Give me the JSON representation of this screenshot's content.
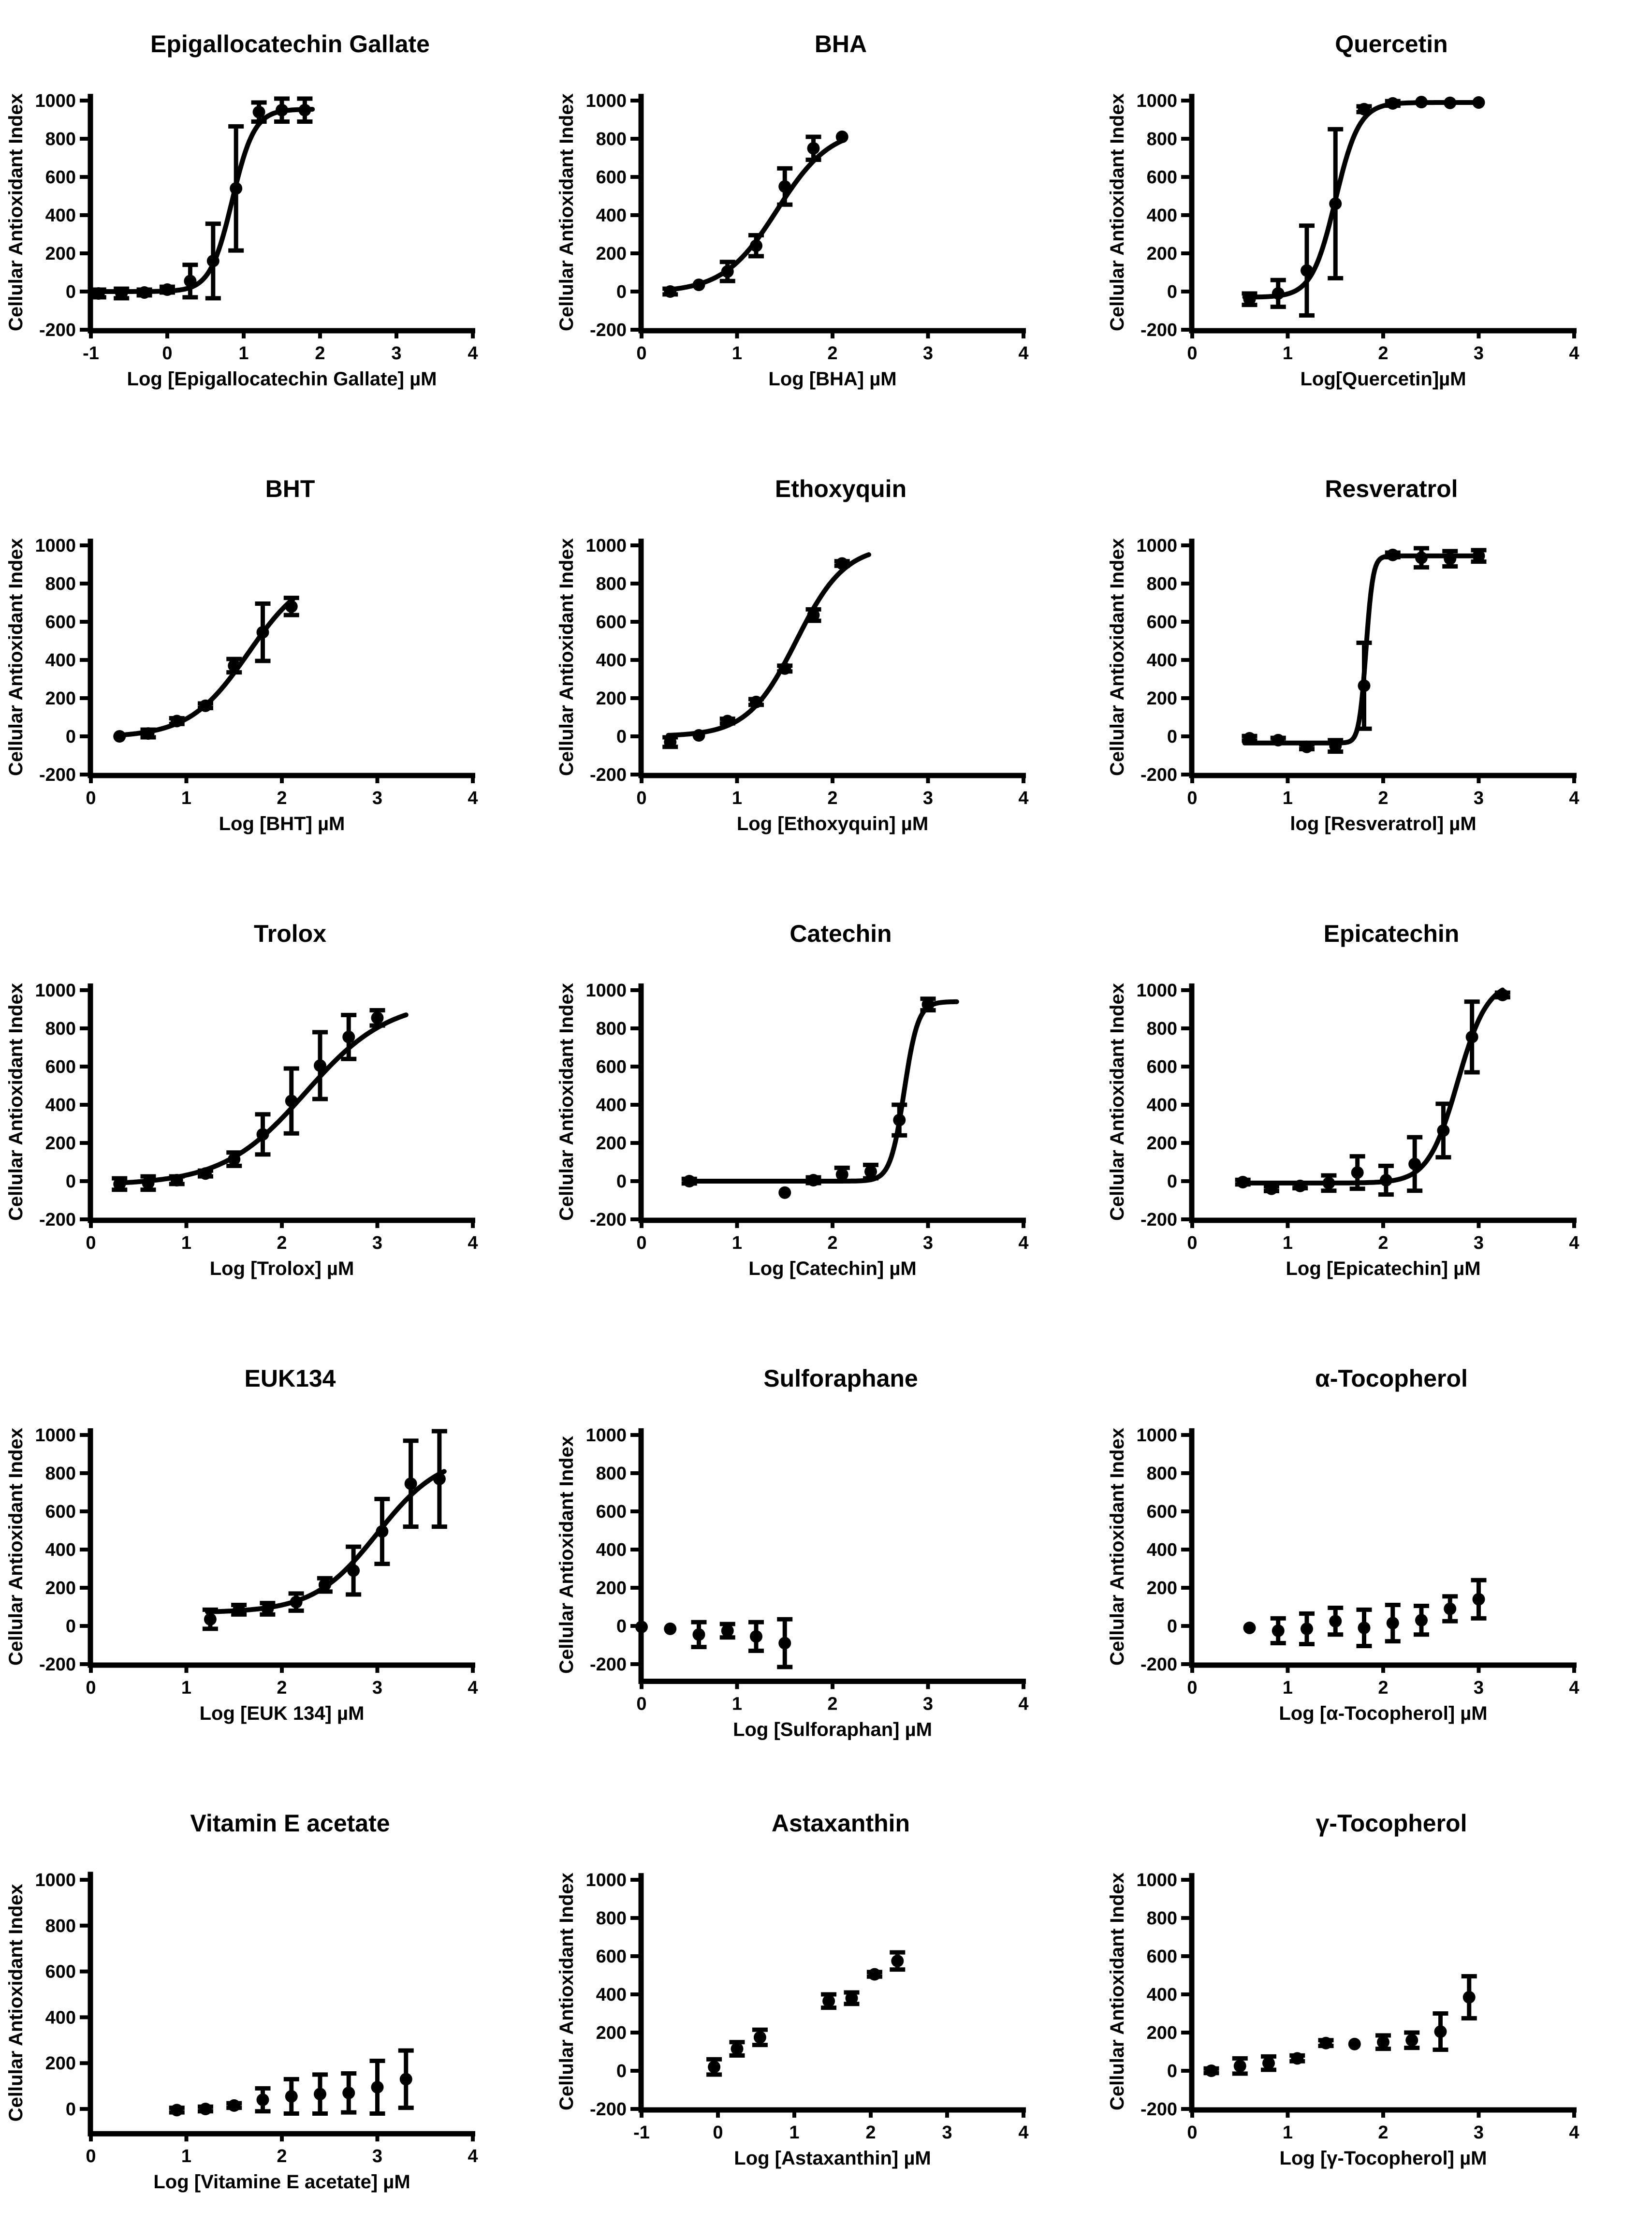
{
  "figure": {
    "background": "#ffffff",
    "ink_color": "#000000",
    "marker": "filled-circle",
    "rows": 5,
    "cols": 3
  },
  "chart_data": [
    {
      "type": "scatter",
      "title": "Epigallocatechin Gallate",
      "xlabel": "Log [Epigallocatechin Gallate] µM",
      "ylabel": "Cellular Antioxidant Index",
      "xlim": [
        -1,
        4
      ],
      "ylim": [
        -205,
        1035
      ],
      "xticks": [
        -1,
        0,
        1,
        2,
        3,
        4
      ],
      "yticks": [
        -200,
        0,
        200,
        400,
        600,
        800,
        1000
      ],
      "grid": false,
      "legend": "none",
      "fit": {
        "bottom": 0,
        "top": 955,
        "logec50": 0.85,
        "hill": 3,
        "xrange": [
          -0.92,
          1.9
        ]
      },
      "points": [
        [
          -0.9,
          -10,
          20
        ],
        [
          -0.6,
          -10,
          25
        ],
        [
          -0.3,
          -5,
          15
        ],
        [
          0,
          10,
          15
        ],
        [
          0.3,
          55,
          85
        ],
        [
          0.6,
          160,
          195
        ],
        [
          0.9,
          540,
          325
        ],
        [
          1.2,
          940,
          50
        ],
        [
          1.5,
          950,
          60
        ],
        [
          1.8,
          950,
          60
        ]
      ]
    },
    {
      "type": "scatter",
      "title": "BHA",
      "xlabel": "Log [BHA] µM",
      "ylabel": "Cellular Antioxidant Index",
      "xlim": [
        0,
        4
      ],
      "ylim": [
        -205,
        1035
      ],
      "xticks": [
        0,
        1,
        2,
        3,
        4
      ],
      "yticks": [
        -200,
        0,
        200,
        400,
        600,
        800,
        1000
      ],
      "grid": false,
      "legend": "none",
      "fit": {
        "bottom": -5,
        "top": 860,
        "logec50": 1.42,
        "hill": 1.55,
        "xrange": [
          0.28,
          2.1
        ]
      },
      "points": [
        [
          0.3,
          0,
          15
        ],
        [
          0.6,
          35,
          10
        ],
        [
          0.9,
          105,
          50
        ],
        [
          1.2,
          240,
          55
        ],
        [
          1.5,
          550,
          95
        ],
        [
          1.8,
          750,
          60
        ],
        [
          2.1,
          810,
          10
        ]
      ]
    },
    {
      "type": "scatter",
      "title": "Quercetin",
      "xlabel": "Log[Quercetin]µM",
      "ylabel": "Cellular Antioxidant Index",
      "xlim": [
        0,
        4
      ],
      "ylim": [
        -205,
        1035
      ],
      "xticks": [
        0,
        1,
        2,
        3,
        4
      ],
      "yticks": [
        -200,
        0,
        200,
        400,
        600,
        800,
        1000
      ],
      "grid": false,
      "legend": "none",
      "fit": {
        "bottom": -30,
        "top": 990,
        "logec50": 1.5,
        "hill": 3.5,
        "xrange": [
          0.55,
          3.0
        ]
      },
      "points": [
        [
          0.6,
          -40,
          30
        ],
        [
          0.9,
          -10,
          70
        ],
        [
          1.2,
          110,
          235
        ],
        [
          1.5,
          460,
          390
        ],
        [
          1.8,
          955,
          15
        ],
        [
          2.1,
          985,
          12
        ],
        [
          2.4,
          992,
          10
        ],
        [
          2.7,
          988,
          10
        ],
        [
          3.0,
          990,
          10
        ]
      ]
    },
    {
      "type": "scatter",
      "title": "BHT",
      "xlabel": "Log [BHT] µM",
      "ylabel": "Cellular Antioxidant Index",
      "xlim": [
        0,
        4
      ],
      "ylim": [
        -205,
        1035
      ],
      "xticks": [
        0,
        1,
        2,
        3,
        4
      ],
      "yticks": [
        -200,
        0,
        200,
        400,
        600,
        800,
        1000
      ],
      "grid": false,
      "legend": "none",
      "fit": {
        "bottom": -5,
        "top": 880,
        "logec50": 1.65,
        "hill": 1.4,
        "xrange": [
          0.28,
          2.12
        ]
      },
      "points": [
        [
          0.3,
          0,
          10
        ],
        [
          0.6,
          15,
          20
        ],
        [
          0.9,
          80,
          15
        ],
        [
          1.2,
          160,
          12
        ],
        [
          1.5,
          370,
          35
        ],
        [
          1.8,
          545,
          150
        ],
        [
          2.1,
          680,
          45
        ]
      ]
    },
    {
      "type": "scatter",
      "title": "Ethoxyquin",
      "xlabel": "Log [Ethoxyquin] µM",
      "ylabel": "Cellular Antioxidant Index",
      "xlim": [
        0,
        4
      ],
      "ylim": [
        -205,
        1035
      ],
      "xticks": [
        0,
        1,
        2,
        3,
        4
      ],
      "yticks": [
        -200,
        0,
        200,
        400,
        600,
        800,
        1000
      ],
      "grid": false,
      "legend": "none",
      "fit": {
        "bottom": 0,
        "top": 1000,
        "logec50": 1.62,
        "hill": 1.7,
        "xrange": [
          0.28,
          2.38
        ]
      },
      "points": [
        [
          0.3,
          -30,
          25
        ],
        [
          0.6,
          5,
          10
        ],
        [
          0.9,
          80,
          12
        ],
        [
          1.2,
          180,
          15
        ],
        [
          1.5,
          355,
          15
        ],
        [
          1.8,
          635,
          30
        ],
        [
          2.1,
          905,
          12
        ]
      ]
    },
    {
      "type": "scatter",
      "title": "Resveratrol",
      "xlabel": "log [Resveratrol] µM",
      "ylabel": "Cellular Antioxidant Index",
      "xlim": [
        0,
        4
      ],
      "ylim": [
        -205,
        1035
      ],
      "xticks": [
        0,
        1,
        2,
        3,
        4
      ],
      "yticks": [
        -200,
        0,
        200,
        400,
        600,
        800,
        1000
      ],
      "grid": false,
      "legend": "none",
      "fit": {
        "bottom": -35,
        "top": 945,
        "logec50": 1.82,
        "hill": 12,
        "xrange": [
          0.55,
          3.0
        ]
      },
      "points": [
        [
          0.6,
          -10,
          12
        ],
        [
          0.9,
          -20,
          12
        ],
        [
          1.2,
          -55,
          12
        ],
        [
          1.5,
          -50,
          30
        ],
        [
          1.8,
          265,
          225
        ],
        [
          2.1,
          950,
          12
        ],
        [
          2.4,
          935,
          50
        ],
        [
          2.7,
          930,
          40
        ],
        [
          3.0,
          945,
          30
        ]
      ]
    },
    {
      "type": "scatter",
      "title": "Trolox",
      "xlabel": "Log [Trolox] µM",
      "ylabel": "Cellular Antioxidant Index",
      "xlim": [
        0,
        4
      ],
      "ylim": [
        -205,
        1035
      ],
      "xticks": [
        0,
        1,
        2,
        3,
        4
      ],
      "yticks": [
        -200,
        0,
        200,
        400,
        600,
        800,
        1000
      ],
      "grid": false,
      "legend": "none",
      "fit": {
        "bottom": -20,
        "top": 950,
        "logec50": 2.25,
        "hill": 1.0,
        "xrange": [
          0.28,
          3.3
        ]
      },
      "points": [
        [
          0.3,
          -15,
          30
        ],
        [
          0.6,
          -10,
          35
        ],
        [
          0.9,
          5,
          20
        ],
        [
          1.2,
          40,
          15
        ],
        [
          1.5,
          115,
          35
        ],
        [
          1.8,
          245,
          105
        ],
        [
          2.1,
          420,
          170
        ],
        [
          2.4,
          605,
          175
        ],
        [
          2.7,
          755,
          115
        ],
        [
          3.0,
          855,
          40
        ]
      ]
    },
    {
      "type": "scatter",
      "title": "Catechin",
      "xlabel": "Log [Catechin] µM",
      "ylabel": "Cellular Antioxidant Index",
      "xlim": [
        0,
        4
      ],
      "ylim": [
        -205,
        1035
      ],
      "xticks": [
        0,
        1,
        2,
        3,
        4
      ],
      "yticks": [
        -200,
        0,
        200,
        400,
        600,
        800,
        1000
      ],
      "grid": false,
      "legend": "none",
      "fit": {
        "bottom": 0,
        "top": 940,
        "logec50": 2.75,
        "hill": 6,
        "xrange": [
          0.5,
          3.3
        ]
      },
      "points": [
        [
          0.5,
          0,
          12
        ],
        [
          1.5,
          -60,
          10
        ],
        [
          1.8,
          5,
          15
        ],
        [
          2.1,
          35,
          35
        ],
        [
          2.4,
          50,
          35
        ],
        [
          2.7,
          320,
          80
        ],
        [
          3.0,
          925,
          30
        ]
      ]
    },
    {
      "type": "scatter",
      "title": "Epicatechin",
      "xlabel": "Log [Epicatechin] µM",
      "ylabel": "Cellular Antioxidant Index",
      "xlim": [
        0,
        4
      ],
      "ylim": [
        -205,
        1035
      ],
      "xticks": [
        0,
        1,
        2,
        3,
        4
      ],
      "yticks": [
        -200,
        0,
        200,
        400,
        600,
        800,
        1000
      ],
      "grid": false,
      "legend": "none",
      "fit": {
        "bottom": -10,
        "top": 1050,
        "logec50": 2.78,
        "hill": 2.8,
        "xrange": [
          0.5,
          3.25
        ]
      },
      "points": [
        [
          0.53,
          -5,
          12
        ],
        [
          0.83,
          -40,
          12
        ],
        [
          1.13,
          -25,
          12
        ],
        [
          1.43,
          -10,
          40
        ],
        [
          1.73,
          45,
          85
        ],
        [
          2.03,
          5,
          75
        ],
        [
          2.33,
          90,
          140
        ],
        [
          2.63,
          265,
          140
        ],
        [
          2.93,
          755,
          185
        ],
        [
          3.25,
          975,
          12
        ]
      ]
    },
    {
      "type": "scatter",
      "title": "EUK134",
      "xlabel": "Log [EUK 134] µM",
      "ylabel": "Cellular Antioxidant Index",
      "xlim": [
        0,
        4
      ],
      "ylim": [
        -205,
        1035
      ],
      "xticks": [
        0,
        1,
        2,
        3,
        4
      ],
      "yticks": [
        -200,
        0,
        200,
        400,
        600,
        800,
        1000
      ],
      "grid": false,
      "legend": "none",
      "fit": {
        "bottom": 70,
        "top": 900,
        "logec50": 3.0,
        "hill": 1.3,
        "xrange": [
          1.22,
          3.7
        ]
      },
      "points": [
        [
          1.25,
          35,
          50
        ],
        [
          1.55,
          85,
          25
        ],
        [
          1.85,
          90,
          30
        ],
        [
          2.15,
          125,
          45
        ],
        [
          2.45,
          215,
          35
        ],
        [
          2.75,
          290,
          125
        ],
        [
          3.05,
          495,
          170
        ],
        [
          3.35,
          745,
          225
        ],
        [
          3.65,
          770,
          250
        ]
      ]
    },
    {
      "type": "scatter",
      "title": "Sulforaphane",
      "xlabel": "Log [Sulforaphan] µM",
      "ylabel": "Cellular Antioxidant Index",
      "xlim": [
        0,
        4
      ],
      "ylim": [
        -290,
        1035
      ],
      "xticks": [
        0,
        1,
        2,
        3,
        4
      ],
      "yticks": [
        -200,
        0,
        200,
        400,
        600,
        800,
        1000
      ],
      "grid": false,
      "legend": "none",
      "fit": null,
      "points": [
        [
          0,
          -5,
          8
        ],
        [
          0.3,
          -15,
          8
        ],
        [
          0.6,
          -45,
          65
        ],
        [
          0.9,
          -25,
          35
        ],
        [
          1.2,
          -55,
          75
        ],
        [
          1.5,
          -90,
          125
        ]
      ]
    },
    {
      "type": "scatter",
      "title": "α-Tocopherol",
      "xlabel": "Log [α-Tocopherol] µM",
      "ylabel": "Cellular Antioxidant Index",
      "xlim": [
        0,
        4
      ],
      "ylim": [
        -205,
        1035
      ],
      "xticks": [
        0,
        1,
        2,
        3,
        4
      ],
      "yticks": [
        -200,
        0,
        200,
        400,
        600,
        800,
        1000
      ],
      "grid": false,
      "legend": "none",
      "fit": null,
      "points": [
        [
          0.6,
          -10,
          8
        ],
        [
          0.9,
          -25,
          65
        ],
        [
          1.2,
          -15,
          80
        ],
        [
          1.5,
          25,
          70
        ],
        [
          1.8,
          -10,
          95
        ],
        [
          2.1,
          15,
          95
        ],
        [
          2.4,
          30,
          75
        ],
        [
          2.7,
          90,
          65
        ],
        [
          3.0,
          140,
          100
        ]
      ]
    },
    {
      "type": "scatter",
      "title": "Vitamin E acetate",
      "xlabel": "Log [Vitamine E acetate] µM",
      "ylabel": "Cellular Antioxidant Index",
      "xlim": [
        0,
        4
      ],
      "ylim": [
        -108,
        1035
      ],
      "xticks": [
        0,
        1,
        2,
        3,
        4
      ],
      "yticks": [
        0,
        200,
        400,
        600,
        800,
        1000
      ],
      "grid": false,
      "legend": "none",
      "fit": null,
      "points": [
        [
          0.9,
          -5,
          10
        ],
        [
          1.2,
          0,
          10
        ],
        [
          1.5,
          15,
          10
        ],
        [
          1.8,
          40,
          50
        ],
        [
          2.1,
          55,
          75
        ],
        [
          2.4,
          65,
          85
        ],
        [
          2.7,
          70,
          85
        ],
        [
          3.0,
          95,
          115
        ],
        [
          3.3,
          130,
          125
        ]
      ]
    },
    {
      "type": "scatter",
      "title": "Astaxanthin",
      "xlabel": "Log [Astaxanthin] µM",
      "ylabel": "Cellular Antioxidant Index",
      "xlim": [
        -1,
        4
      ],
      "ylim": [
        -205,
        1035
      ],
      "xticks": [
        -1,
        0,
        1,
        2,
        3,
        4
      ],
      "yticks": [
        -200,
        0,
        200,
        400,
        600,
        800,
        1000
      ],
      "grid": false,
      "legend": "none",
      "fit": null,
      "points": [
        [
          -0.05,
          20,
          40
        ],
        [
          0.25,
          115,
          35
        ],
        [
          0.55,
          175,
          40
        ],
        [
          1.45,
          365,
          35
        ],
        [
          1.75,
          380,
          30
        ],
        [
          2.05,
          505,
          12
        ],
        [
          2.35,
          575,
          45
        ]
      ]
    },
    {
      "type": "scatter",
      "title": "γ-Tocopherol",
      "xlabel": "Log [γ-Tocopherol] µM",
      "ylabel": "Cellular Antioxidant Index",
      "xlim": [
        0,
        4
      ],
      "ylim": [
        -205,
        1035
      ],
      "xticks": [
        0,
        1,
        2,
        3,
        4
      ],
      "yticks": [
        -200,
        0,
        200,
        400,
        600,
        800,
        1000
      ],
      "grid": false,
      "legend": "none",
      "fit": null,
      "points": [
        [
          0.2,
          0,
          12
        ],
        [
          0.5,
          25,
          40
        ],
        [
          0.8,
          40,
          35
        ],
        [
          1.1,
          65,
          15
        ],
        [
          1.4,
          145,
          15
        ],
        [
          1.7,
          140,
          10
        ],
        [
          2.0,
          150,
          35
        ],
        [
          2.3,
          160,
          40
        ],
        [
          2.6,
          205,
          95
        ],
        [
          2.9,
          385,
          110
        ]
      ]
    }
  ]
}
